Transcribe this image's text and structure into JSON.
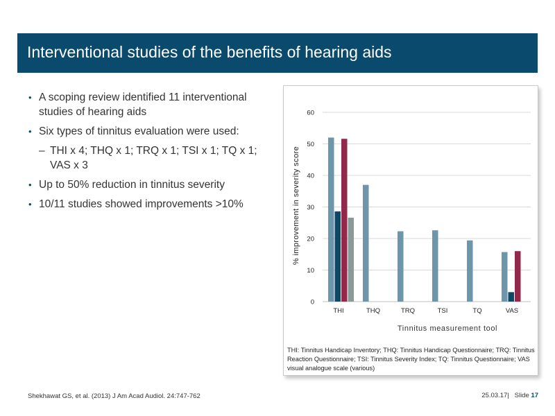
{
  "slide": {
    "title": "Interventional studies of the benefits of hearing aids",
    "bullets": [
      "A scoping review identified 11 interventional studies of hearing aids",
      "Six types of tinnitus evaluation were used:",
      "Up to 50% reduction in tinnitus severity",
      "10/11 studies showed improvements >10%"
    ],
    "sub_bullet": "THI x 4; THQ x 1; TRQ x 1; TSI x 1; TQ x 1; VAS x 3",
    "caption": "THI: Tinnitus Handicap Inventory; THQ: Tinnitus Handicap Questionnaire; TRQ: Tinnitus Reaction Questionnaire; TSI: Tinnitus Severity Index; TQ: Tinnitus Questionnaire; VAS visual analogue scale (various)",
    "footer": {
      "citation": "Shekhawat GS, et al. (2013) J Am Acad Audiol. 24:747-762",
      "date": "25.03.17",
      "slide_label": "Slide",
      "slide_number": "17"
    }
  },
  "chart_data": {
    "type": "bar",
    "categories": [
      "THI",
      "THQ",
      "TRQ",
      "TSI",
      "TQ",
      "VAS"
    ],
    "series": [
      {
        "color": "#6e96ab",
        "values": [
          52,
          37,
          22.3,
          22.6,
          19.4,
          15.7
        ]
      },
      {
        "color": "#0f4766",
        "values": [
          28.6,
          null,
          null,
          null,
          null,
          3
        ]
      },
      {
        "color": "#94284a",
        "values": [
          51.6,
          null,
          null,
          null,
          null,
          16
        ]
      },
      {
        "color": "#8a9a98",
        "values": [
          26.6,
          null,
          null,
          null,
          null,
          null
        ]
      }
    ],
    "xlabel": "Tinnitus measurement tool",
    "ylabel": "% improvement in severity score",
    "ylim": [
      0,
      60
    ],
    "yticks": [
      0,
      10,
      20,
      30,
      40,
      50,
      60
    ],
    "grid": true
  }
}
